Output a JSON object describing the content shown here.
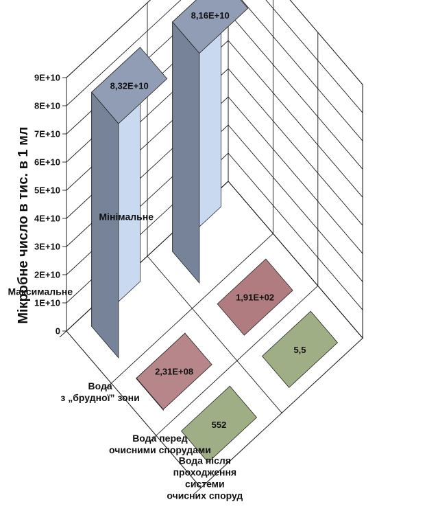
{
  "chart_data": {
    "type": "bar",
    "subtype": "3d-bar",
    "title": "",
    "ylabel": "Мікробне число в тис. в 1 мл",
    "ylim": [
      0,
      90000000000
    ],
    "y_ticks": [
      "0",
      "1E+10",
      "2E+10",
      "3E+10",
      "4E+10",
      "5E+10",
      "6E+10",
      "7E+10",
      "8E+10",
      "9E+10"
    ],
    "categories": [
      "Вода з „брудної” зони",
      "Вода перед очисними спорудами",
      "Вода після проходження системи очисних споруд"
    ],
    "category_lines": [
      [
        "Вода",
        "з „брудної” зони"
      ],
      [
        "Вода перед",
        "очисними спорудами"
      ],
      [
        "Вода після",
        "проходження",
        "системи",
        "очисних споруд"
      ]
    ],
    "series": [
      {
        "name": "Максимальне",
        "values": [
          83200000000,
          231000000,
          552
        ],
        "labels": [
          "8,32E+10",
          "2,31E+08",
          "552"
        ]
      },
      {
        "name": "Мінімальне",
        "values": [
          81600000000,
          191,
          5.5
        ],
        "labels": [
          "8,16E+10",
          "1,91E+02",
          "5,5"
        ]
      }
    ],
    "colors": {
      "category_1": "#8795ad",
      "category_2": "#b07c80",
      "category_3": "#9fae84"
    },
    "grid": true
  }
}
